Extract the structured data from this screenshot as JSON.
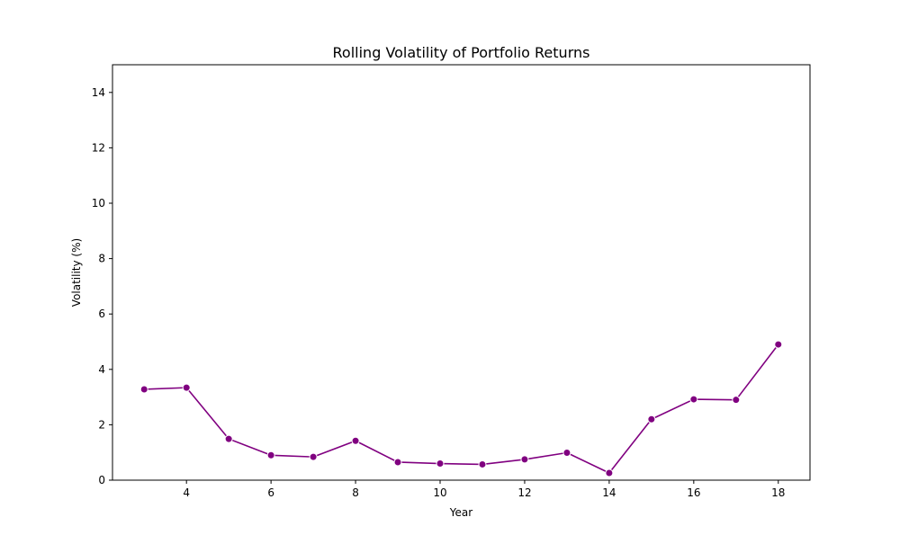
{
  "chart_data": {
    "type": "line",
    "title": "Rolling Volatility of Portfolio Returns",
    "xlabel": "Year",
    "ylabel": "Volatility (%)",
    "xlim": [
      2.25,
      18.75
    ],
    "ylim": [
      0,
      15
    ],
    "x_ticks": [
      4,
      6,
      8,
      10,
      12,
      14,
      16,
      18
    ],
    "y_ticks": [
      0,
      2,
      4,
      6,
      8,
      10,
      12,
      14
    ],
    "grid": false,
    "legend": "none",
    "series": [
      {
        "color": "#800080",
        "marker": "circle",
        "x": [
          3,
          4,
          5,
          6,
          7,
          8,
          9,
          10,
          11,
          12,
          13,
          14,
          15,
          16,
          17,
          18
        ],
        "y": [
          3.28,
          3.34,
          1.49,
          0.9,
          0.84,
          1.42,
          0.65,
          0.6,
          0.57,
          0.75,
          0.99,
          0.26,
          2.2,
          2.92,
          2.9,
          4.9
        ]
      }
    ]
  }
}
